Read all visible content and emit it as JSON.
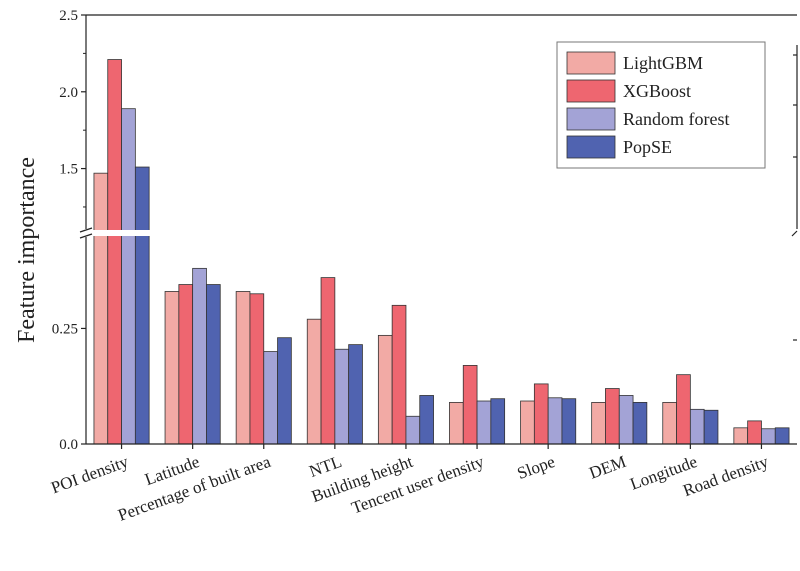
{
  "chart_data": {
    "type": "bar",
    "ylabel": "Feature importance",
    "categories": [
      "POI density",
      "Latitude",
      "Percentage of built area",
      "NTL",
      "Building height",
      "Tencent user density",
      "Slope",
      "DEM",
      "Longitude",
      "Road density"
    ],
    "series": [
      {
        "name": "LightGBM",
        "color": "#f2aaa5",
        "values": [
          1.47,
          0.33,
          0.33,
          0.27,
          0.235,
          0.09,
          0.093,
          0.09,
          0.09,
          0.035
        ]
      },
      {
        "name": "XGBoost",
        "color": "#ee6670",
        "values": [
          2.21,
          0.345,
          0.325,
          0.36,
          0.3,
          0.17,
          0.13,
          0.12,
          0.15,
          0.05
        ]
      },
      {
        "name": "Random forest",
        "color": "#a3a3d6",
        "values": [
          1.89,
          0.38,
          0.2,
          0.205,
          0.06,
          0.093,
          0.1,
          0.105,
          0.075,
          0.033
        ]
      },
      {
        "name": "PopSE",
        "color": "#5063b0",
        "values": [
          1.51,
          0.345,
          0.23,
          0.215,
          0.105,
          0.098,
          0.098,
          0.09,
          0.073,
          0.035
        ]
      }
    ],
    "y_axis": {
      "broken": true,
      "lower_range": [
        0,
        0.45
      ],
      "upper_range": [
        1.1,
        2.5
      ],
      "ticks": [
        {
          "value": 0.0,
          "label": "0.0"
        },
        {
          "value": 0.25,
          "label": "0.25"
        },
        {
          "value": 1.5,
          "label": "1.5"
        },
        {
          "value": 2.0,
          "label": "2.0"
        },
        {
          "value": 2.5,
          "label": "2.5"
        }
      ]
    },
    "grid": false,
    "legend_position": "top-right"
  }
}
